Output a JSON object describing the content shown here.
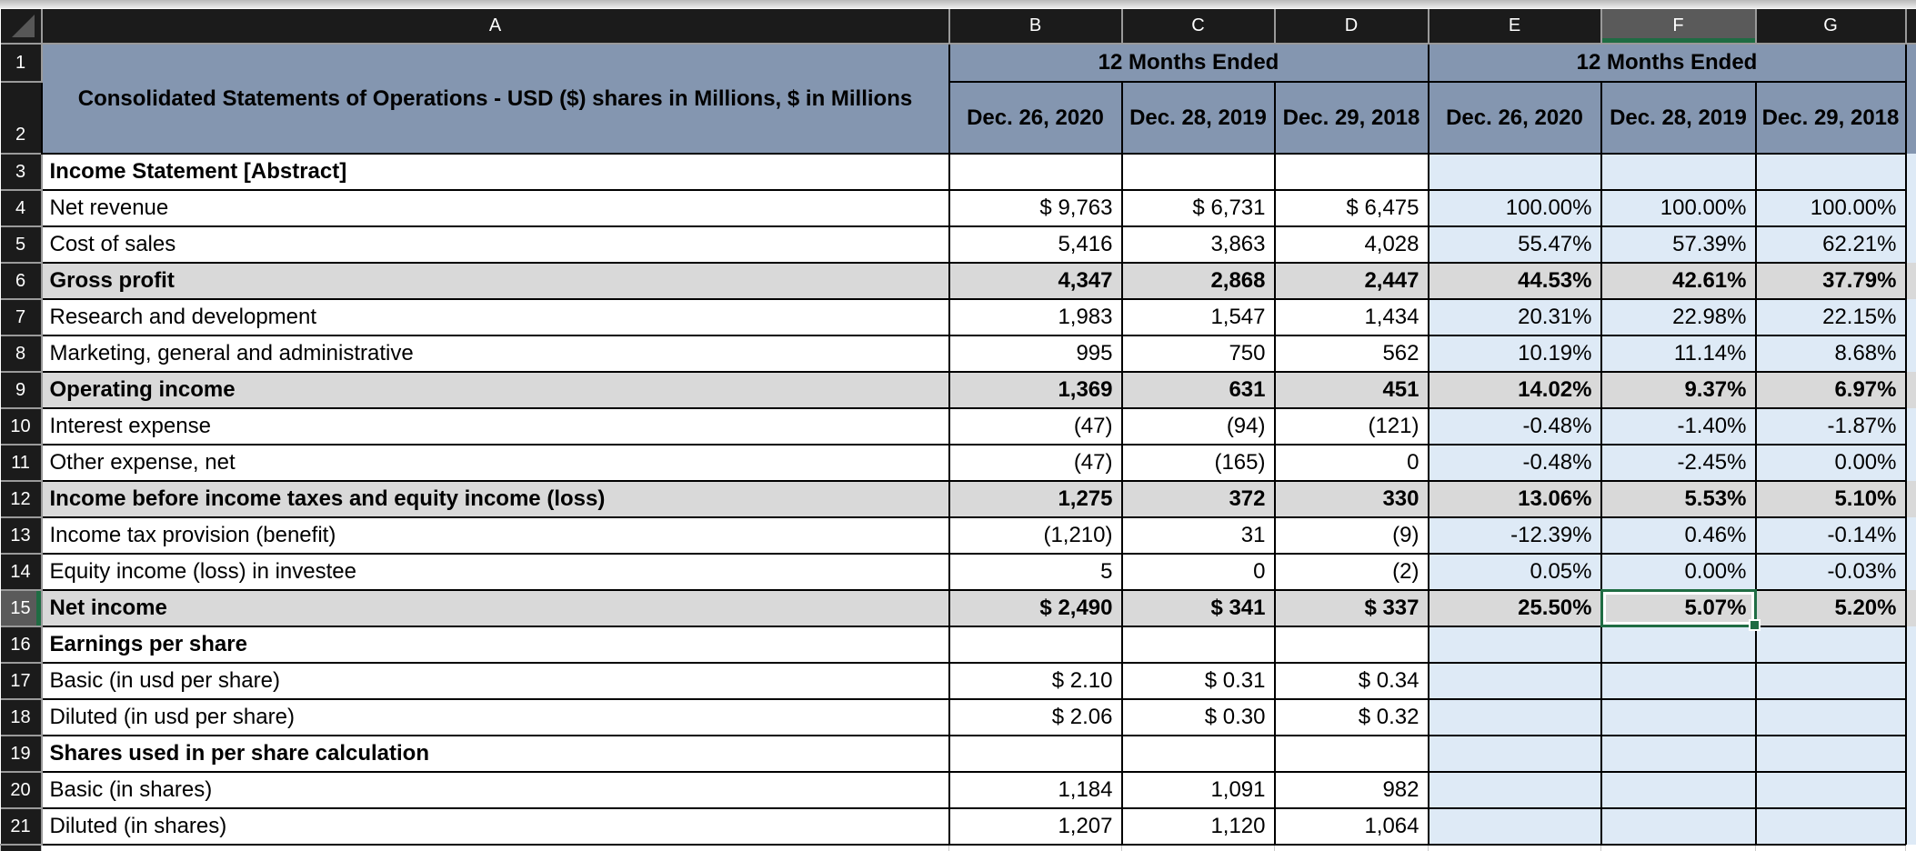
{
  "sheet": {
    "column_headers": [
      "A",
      "B",
      "C",
      "D",
      "E",
      "F",
      "G"
    ],
    "header_row_numbers": [
      "1",
      "2"
    ],
    "selected": {
      "cell": "F15",
      "column": "F",
      "row": 15,
      "value": "5.07%"
    },
    "colors": {
      "header_fill": "#8496b0",
      "percent_fill": "#deeaf6",
      "subtotal_fill": "#d9d9d9",
      "selection_green": "#1f6c43",
      "header_strip_bg": "#1b1b1b",
      "selected_header_bg": "#5a5a5a"
    },
    "header": {
      "title": "Consolidated Statements of Operations - USD ($) shares in Millions, $ in Millions",
      "group1": "12 Months Ended",
      "group2": "12 Months Ended",
      "dates": [
        "Dec. 26, 2020",
        "Dec. 28, 2019",
        "Dec. 29, 2018",
        "Dec. 26, 2020",
        "Dec. 28, 2019",
        "Dec. 29, 2018"
      ]
    },
    "rows": [
      {
        "n": 3,
        "label": "Income Statement [Abstract]",
        "style": "section",
        "values": [
          "",
          "",
          "",
          "",
          "",
          ""
        ]
      },
      {
        "n": 4,
        "label": "Net revenue",
        "style": "data",
        "values": [
          "$ 9,763",
          "$ 6,731",
          "$ 6,475",
          "100.00%",
          "100.00%",
          "100.00%"
        ]
      },
      {
        "n": 5,
        "label": "Cost of sales",
        "style": "data",
        "values": [
          "5,416",
          "3,863",
          "4,028",
          "55.47%",
          "57.39%",
          "62.21%"
        ]
      },
      {
        "n": 6,
        "label": "Gross profit",
        "style": "subtotal",
        "values": [
          "4,347",
          "2,868",
          "2,447",
          "44.53%",
          "42.61%",
          "37.79%"
        ]
      },
      {
        "n": 7,
        "label": "Research and development",
        "style": "data",
        "values": [
          "1,983",
          "1,547",
          "1,434",
          "20.31%",
          "22.98%",
          "22.15%"
        ]
      },
      {
        "n": 8,
        "label": "Marketing, general and administrative",
        "style": "data",
        "values": [
          "995",
          "750",
          "562",
          "10.19%",
          "11.14%",
          "8.68%"
        ]
      },
      {
        "n": 9,
        "label": "Operating income",
        "style": "subtotal",
        "values": [
          "1,369",
          "631",
          "451",
          "14.02%",
          "9.37%",
          "6.97%"
        ]
      },
      {
        "n": 10,
        "label": "Interest expense",
        "style": "data",
        "values": [
          "(47)",
          "(94)",
          "(121)",
          "-0.48%",
          "-1.40%",
          "-1.87%"
        ]
      },
      {
        "n": 11,
        "label": "Other expense, net",
        "style": "data",
        "values": [
          "(47)",
          "(165)",
          "0",
          "-0.48%",
          "-2.45%",
          "0.00%"
        ]
      },
      {
        "n": 12,
        "label": "Income before income taxes and equity income (loss)",
        "style": "subtotal",
        "values": [
          "1,275",
          "372",
          "330",
          "13.06%",
          "5.53%",
          "5.10%"
        ]
      },
      {
        "n": 13,
        "label": "Income tax provision (benefit)",
        "style": "data",
        "values": [
          "(1,210)",
          "31",
          "(9)",
          "-12.39%",
          "0.46%",
          "-0.14%"
        ]
      },
      {
        "n": 14,
        "label": "Equity income (loss) in investee",
        "style": "data",
        "values": [
          "5",
          "0",
          "(2)",
          "0.05%",
          "0.00%",
          "-0.03%"
        ]
      },
      {
        "n": 15,
        "label": "Net income",
        "style": "subtotal",
        "values": [
          "$ 2,490",
          "$ 341",
          "$ 337",
          "25.50%",
          "5.07%",
          "5.20%"
        ]
      },
      {
        "n": 16,
        "label": "Earnings per share",
        "style": "section",
        "values": [
          "",
          "",
          "",
          "",
          "",
          ""
        ]
      },
      {
        "n": 17,
        "label": "Basic (in usd per share)",
        "style": "data",
        "values": [
          "$ 2.10",
          "$ 0.31",
          "$ 0.34",
          "",
          "",
          ""
        ]
      },
      {
        "n": 18,
        "label": "Diluted (in usd per share)",
        "style": "data",
        "values": [
          "$ 2.06",
          "$ 0.30",
          "$ 0.32",
          "",
          "",
          ""
        ]
      },
      {
        "n": 19,
        "label": "Shares used in per share calculation",
        "style": "section",
        "values": [
          "",
          "",
          "",
          "",
          "",
          ""
        ]
      },
      {
        "n": 20,
        "label": "Basic (in shares)",
        "style": "data",
        "values": [
          "1,184",
          "1,091",
          "982",
          "",
          "",
          ""
        ]
      },
      {
        "n": 21,
        "label": "Diluted (in shares)",
        "style": "data",
        "values": [
          "1,207",
          "1,120",
          "1,064",
          "",
          "",
          ""
        ]
      }
    ]
  }
}
